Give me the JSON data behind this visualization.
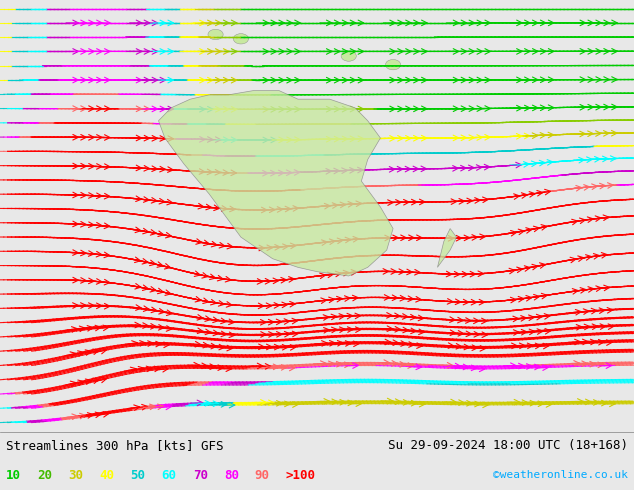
{
  "title_left": "Streamlines 300 hPa [kts] GFS",
  "title_right": "Su 29-09-2024 18:00 UTC (18+168)",
  "legend_values": [
    "10",
    "20",
    "30",
    "40",
    "50",
    "60",
    "70",
    "80",
    "90",
    ">100"
  ],
  "legend_colors": [
    "#00ff00",
    "#00ff00",
    "#ffff00",
    "#ffff00",
    "#00ffff",
    "#00ffff",
    "#ff00ff",
    "#ff00ff",
    "#ff0000",
    "#ff0000"
  ],
  "watermark": "©weatheronline.co.uk",
  "watermark_color": "#00aaff",
  "bg_color": "#e8e8e8",
  "map_bg": "#d8d8d8",
  "fig_width": 6.34,
  "fig_height": 4.9,
  "dpi": 100,
  "bottom_bar_color": "#ffffff",
  "title_fontsize": 9,
  "legend_fontsize": 9
}
